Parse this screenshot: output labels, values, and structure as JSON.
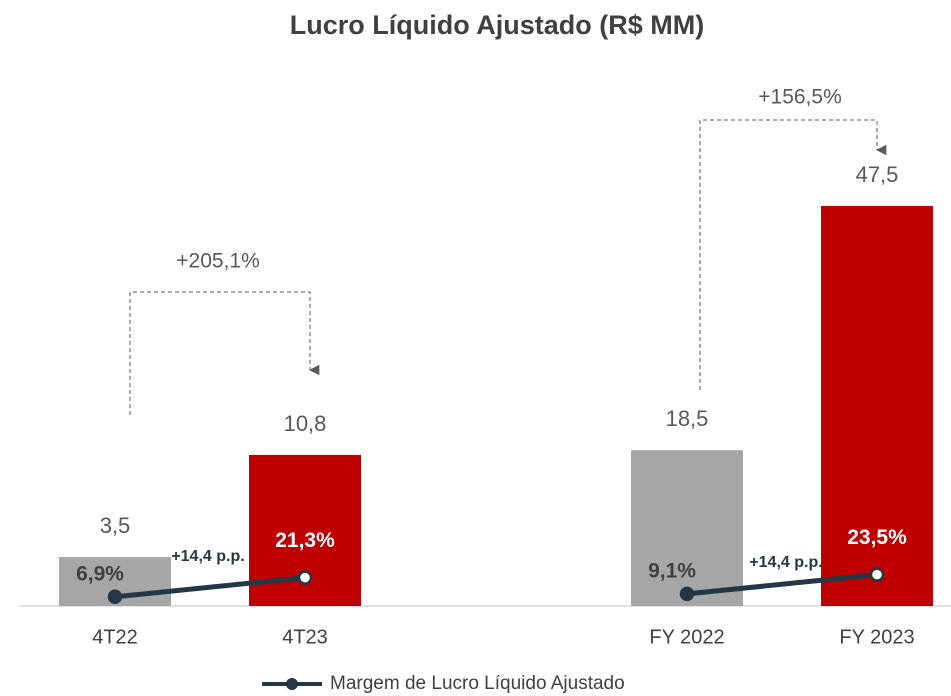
{
  "title": "Lucro Líquido Ajustado (R$ MM)",
  "legend": "Margem de Lucro Líquido Ajustado",
  "chart_data": [
    {
      "type": "bar",
      "categories": [
        "4T22",
        "4T23"
      ],
      "values": [
        3.5,
        10.8
      ],
      "value_labels": [
        "3,5",
        "10,8"
      ],
      "colors": [
        "#a6a6a6",
        "#c00000"
      ],
      "ylim": [
        0,
        28.6
      ],
      "line": {
        "values": [
          6.9,
          21.3
        ],
        "value_labels": [
          "6,9%",
          "21,3%"
        ],
        "color": "#243746",
        "y2lim": [
          0,
          300
        ]
      },
      "growth": "+205,1%",
      "margin_change": "+14,4 p.p."
    },
    {
      "type": "bar",
      "categories": [
        "FY 2022",
        "FY 2023"
      ],
      "values": [
        18.5,
        47.5
      ],
      "value_labels": [
        "18,5",
        "47,5"
      ],
      "colors": [
        "#a6a6a6",
        "#c00000"
      ],
      "ylim": [
        0,
        47.5
      ],
      "line": {
        "values": [
          9.1,
          23.5
        ],
        "value_labels": [
          "9,1%",
          "23,5%"
        ],
        "color": "#243746",
        "y2lim": [
          0,
          300
        ]
      },
      "growth": "+156,5%",
      "margin_change": "+14,4 p.p."
    }
  ]
}
